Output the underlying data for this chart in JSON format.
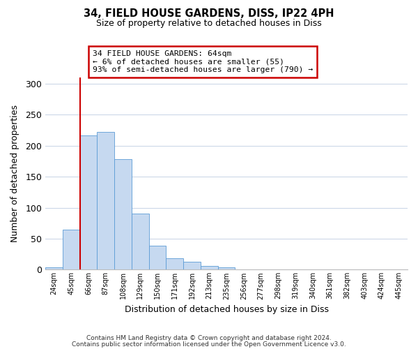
{
  "title": "34, FIELD HOUSE GARDENS, DISS, IP22 4PH",
  "subtitle": "Size of property relative to detached houses in Diss",
  "xlabel": "Distribution of detached houses by size in Diss",
  "ylabel": "Number of detached properties",
  "bar_labels": [
    "24sqm",
    "45sqm",
    "66sqm",
    "87sqm",
    "108sqm",
    "129sqm",
    "150sqm",
    "171sqm",
    "192sqm",
    "213sqm",
    "235sqm",
    "256sqm",
    "277sqm",
    "298sqm",
    "319sqm",
    "340sqm",
    "361sqm",
    "382sqm",
    "403sqm",
    "424sqm",
    "445sqm"
  ],
  "bar_values": [
    4,
    65,
    217,
    222,
    178,
    91,
    39,
    18,
    13,
    6,
    4,
    0,
    1,
    0,
    0,
    0,
    0,
    0,
    0,
    1,
    0
  ],
  "bar_color": "#c6d9f0",
  "bar_edge_color": "#5b9bd5",
  "vline_color": "#cc0000",
  "annotation_text": "34 FIELD HOUSE GARDENS: 64sqm\n← 6% of detached houses are smaller (55)\n93% of semi-detached houses are larger (790) →",
  "annotation_box_color": "#ffffff",
  "annotation_box_edge": "#cc0000",
  "ylim": [
    0,
    310
  ],
  "yticks": [
    0,
    50,
    100,
    150,
    200,
    250,
    300
  ],
  "footer_line1": "Contains HM Land Registry data © Crown copyright and database right 2024.",
  "footer_line2": "Contains public sector information licensed under the Open Government Licence v3.0.",
  "bg_color": "#ffffff",
  "grid_color": "#ccd8e8"
}
